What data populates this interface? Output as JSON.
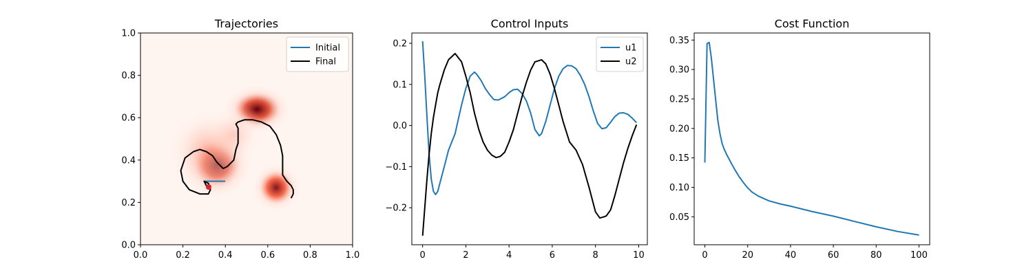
{
  "colors": {
    "blue": "#1f77b4",
    "black": "#000000",
    "heat": "#67000d"
  },
  "chart_data": [
    {
      "type": "line",
      "title": "Trajectories",
      "xlabel": "",
      "ylabel": "",
      "xlim": [
        0.0,
        1.0
      ],
      "ylim": [
        0.0,
        1.0
      ],
      "xticks": [
        "0.0",
        "0.2",
        "0.4",
        "0.6",
        "0.8",
        "1.0"
      ],
      "yticks": [
        "0.0",
        "0.2",
        "0.4",
        "0.6",
        "0.8",
        "1.0"
      ],
      "legend": "top-right",
      "background_heatmap": {
        "colormap": "Reds",
        "peaks": [
          {
            "x": 0.55,
            "y": 0.64,
            "sx": 0.055,
            "sy": 0.04,
            "w": 1.0
          },
          {
            "x": 0.36,
            "y": 0.38,
            "sx": 0.055,
            "sy": 0.055,
            "w": 1.0
          },
          {
            "x": 0.64,
            "y": 0.27,
            "sx": 0.04,
            "sy": 0.04,
            "w": 0.9
          },
          {
            "x": 0.33,
            "y": 0.44,
            "sx": 0.08,
            "sy": 0.08,
            "w": 0.35
          },
          {
            "x": 0.44,
            "y": 0.52,
            "sx": 0.05,
            "sy": 0.05,
            "w": 0.25
          }
        ]
      },
      "series": [
        {
          "name": "Initial",
          "color": "#1f77b4",
          "x": [
            0.3,
            0.4
          ],
          "y": [
            0.3,
            0.3
          ]
        },
        {
          "name": "Final",
          "color": "#000000",
          "x": [
            0.32,
            0.31,
            0.3,
            0.32,
            0.33,
            0.32,
            0.28,
            0.23,
            0.2,
            0.19,
            0.21,
            0.25,
            0.28,
            0.31,
            0.34,
            0.36,
            0.38,
            0.39,
            0.41,
            0.44,
            0.45,
            0.46,
            0.46,
            0.46,
            0.45,
            0.46,
            0.49,
            0.53,
            0.57,
            0.61,
            0.64,
            0.66,
            0.67,
            0.67,
            0.67,
            0.69,
            0.71,
            0.72,
            0.72,
            0.71
          ],
          "y": [
            0.27,
            0.28,
            0.3,
            0.29,
            0.26,
            0.24,
            0.24,
            0.26,
            0.3,
            0.35,
            0.41,
            0.44,
            0.45,
            0.44,
            0.42,
            0.39,
            0.37,
            0.36,
            0.37,
            0.4,
            0.45,
            0.48,
            0.52,
            0.55,
            0.57,
            0.58,
            0.59,
            0.59,
            0.58,
            0.56,
            0.52,
            0.47,
            0.42,
            0.37,
            0.33,
            0.3,
            0.28,
            0.26,
            0.24,
            0.22
          ]
        }
      ]
    },
    {
      "type": "line",
      "title": "Control Inputs",
      "xlabel": "",
      "ylabel": "",
      "xlim": [
        -0.5,
        10.4
      ],
      "ylim": [
        -0.29,
        0.225
      ],
      "xticks": [
        "0",
        "2",
        "4",
        "6",
        "8",
        "10"
      ],
      "yticks": [
        "−0.2",
        "−0.1",
        "0.0",
        "0.1",
        "0.2"
      ],
      "legend": "top-right",
      "series": [
        {
          "name": "u1",
          "color": "#1f77b4",
          "x": [
            0.0,
            0.1,
            0.2,
            0.3,
            0.4,
            0.5,
            0.6,
            0.7,
            0.8,
            1.0,
            1.2,
            1.5,
            1.8,
            2.0,
            2.2,
            2.4,
            2.5,
            2.7,
            2.9,
            3.1,
            3.3,
            3.5,
            3.8,
            4.0,
            4.2,
            4.4,
            4.6,
            4.8,
            5.0,
            5.2,
            5.4,
            5.5,
            5.7,
            5.9,
            6.1,
            6.3,
            6.5,
            6.7,
            6.9,
            7.1,
            7.3,
            7.5,
            7.7,
            7.9,
            8.1,
            8.3,
            8.5,
            8.7,
            8.9,
            9.1,
            9.3,
            9.5,
            9.7,
            9.9
          ],
          "y": [
            0.205,
            0.12,
            0.02,
            -0.07,
            -0.13,
            -0.16,
            -0.168,
            -0.16,
            -0.14,
            -0.1,
            -0.06,
            -0.02,
            0.05,
            0.09,
            0.12,
            0.13,
            0.125,
            0.11,
            0.09,
            0.075,
            0.063,
            0.062,
            0.07,
            0.08,
            0.087,
            0.088,
            0.078,
            0.06,
            0.03,
            -0.01,
            -0.025,
            -0.02,
            0.01,
            0.05,
            0.09,
            0.12,
            0.138,
            0.146,
            0.145,
            0.138,
            0.122,
            0.1,
            0.07,
            0.035,
            0.005,
            -0.008,
            -0.005,
            0.008,
            0.022,
            0.03,
            0.031,
            0.027,
            0.018,
            0.007
          ]
        },
        {
          "name": "u2",
          "color": "#000000",
          "x": [
            0.0,
            0.1,
            0.2,
            0.3,
            0.4,
            0.5,
            0.6,
            0.7,
            0.8,
            1.0,
            1.2,
            1.5,
            1.8,
            2.0,
            2.2,
            2.4,
            2.6,
            2.8,
            3.0,
            3.2,
            3.4,
            3.6,
            3.8,
            4.0,
            4.2,
            4.4,
            4.6,
            4.8,
            5.0,
            5.2,
            5.4,
            5.5,
            5.7,
            5.9,
            6.1,
            6.3,
            6.5,
            6.8,
            7.1,
            7.4,
            7.7,
            8.0,
            8.2,
            8.4,
            8.5,
            8.7,
            8.9,
            9.1,
            9.3,
            9.5,
            9.7,
            9.9
          ],
          "y": [
            -0.268,
            -0.2,
            -0.13,
            -0.07,
            -0.02,
            0.02,
            0.05,
            0.08,
            0.1,
            0.135,
            0.16,
            0.175,
            0.155,
            0.12,
            0.08,
            0.03,
            -0.01,
            -0.04,
            -0.06,
            -0.072,
            -0.078,
            -0.075,
            -0.065,
            -0.04,
            -0.01,
            0.03,
            0.07,
            0.105,
            0.135,
            0.155,
            0.158,
            0.16,
            0.15,
            0.125,
            0.09,
            0.05,
            0.01,
            -0.04,
            -0.06,
            -0.095,
            -0.15,
            -0.21,
            -0.225,
            -0.222,
            -0.22,
            -0.205,
            -0.17,
            -0.13,
            -0.09,
            -0.055,
            -0.025,
            0.002
          ]
        }
      ]
    },
    {
      "type": "line",
      "title": "Cost Function",
      "xlabel": "",
      "ylabel": "",
      "xlim": [
        -5,
        105
      ],
      "ylim": [
        0.0025,
        0.362
      ],
      "xticks": [
        "0",
        "20",
        "40",
        "60",
        "80",
        "100"
      ],
      "yticks": [
        "0.05",
        "0.10",
        "0.15",
        "0.20",
        "0.25",
        "0.30",
        "0.35"
      ],
      "legend": "none",
      "series": [
        {
          "color": "#1f77b4",
          "x": [
            0,
            1,
            2,
            3,
            4,
            5,
            6,
            7,
            8,
            9,
            10,
            12,
            14,
            16,
            18,
            20,
            22,
            25,
            30,
            35,
            40,
            50,
            60,
            70,
            80,
            90,
            100
          ],
          "y": [
            0.142,
            0.344,
            0.346,
            0.32,
            0.285,
            0.25,
            0.215,
            0.192,
            0.175,
            0.165,
            0.157,
            0.143,
            0.13,
            0.118,
            0.108,
            0.099,
            0.092,
            0.085,
            0.077,
            0.072,
            0.068,
            0.059,
            0.051,
            0.042,
            0.033,
            0.025,
            0.019
          ]
        }
      ]
    }
  ]
}
